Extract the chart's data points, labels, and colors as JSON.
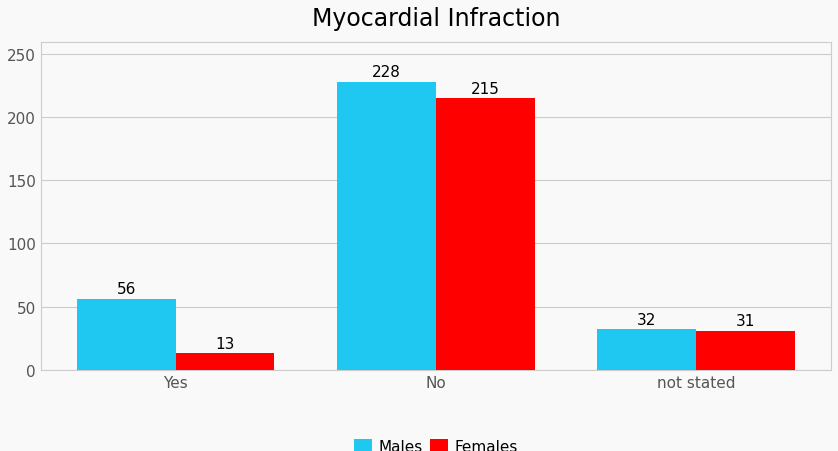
{
  "title": "Myocardial Infraction",
  "categories": [
    "Yes",
    "No",
    "not stated"
  ],
  "males": [
    56,
    228,
    32
  ],
  "females": [
    13,
    215,
    31
  ],
  "male_color": "#1EC8F0",
  "female_color": "#FF0000",
  "legend_labels": [
    "Males",
    "Females"
  ],
  "ylim": [
    0,
    260
  ],
  "yticks": [
    0,
    50,
    100,
    150,
    200,
    250
  ],
  "bar_width": 0.38,
  "title_fontsize": 17,
  "label_fontsize": 11,
  "tick_fontsize": 11,
  "legend_fontsize": 11,
  "background_color": "#f9f9f9",
  "plot_bg_color": "#f9f9f9",
  "grid_color": "#cccccc"
}
